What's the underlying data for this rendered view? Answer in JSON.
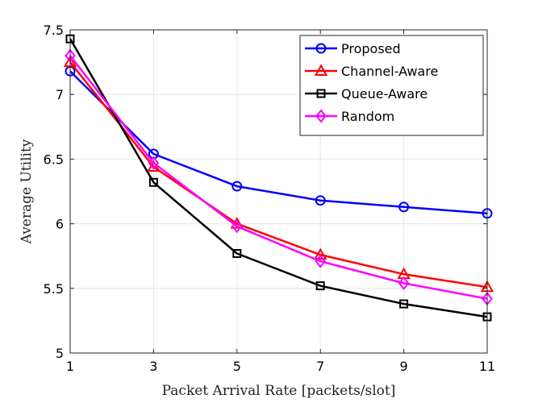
{
  "chart_data": {
    "type": "line",
    "title": "",
    "xlabel": "Packet Arrival Rate [packets/slot]",
    "ylabel": "Average Utility",
    "x": [
      1,
      3,
      5,
      7,
      9,
      11
    ],
    "xlim": [
      1,
      11
    ],
    "ylim": [
      5,
      7.5
    ],
    "xticks": [
      1,
      3,
      5,
      7,
      9,
      11
    ],
    "yticks": [
      5,
      5.5,
      6,
      6.5,
      7,
      7.5
    ],
    "xtick_labels": [
      "1",
      "3",
      "5",
      "7",
      "9",
      "11"
    ],
    "ytick_labels": [
      "5",
      "5.5",
      "6",
      "6.5",
      "7",
      "7.5"
    ],
    "grid": true,
    "legend_position": "top-right",
    "series": [
      {
        "name": "Proposed",
        "color": "#0000ff",
        "marker": "circle",
        "values": [
          7.18,
          6.54,
          6.29,
          6.18,
          6.13,
          6.08
        ]
      },
      {
        "name": "Channel-Aware",
        "color": "#ff0000",
        "marker": "triangle",
        "values": [
          7.25,
          6.44,
          6.0,
          5.76,
          5.61,
          5.51
        ]
      },
      {
        "name": "Queue-Aware",
        "color": "#000000",
        "marker": "square",
        "values": [
          7.43,
          6.32,
          5.77,
          5.52,
          5.38,
          5.28
        ]
      },
      {
        "name": "Random",
        "color": "#ff00ff",
        "marker": "diamond",
        "values": [
          7.3,
          6.47,
          5.98,
          5.71,
          5.54,
          5.42
        ]
      }
    ]
  }
}
